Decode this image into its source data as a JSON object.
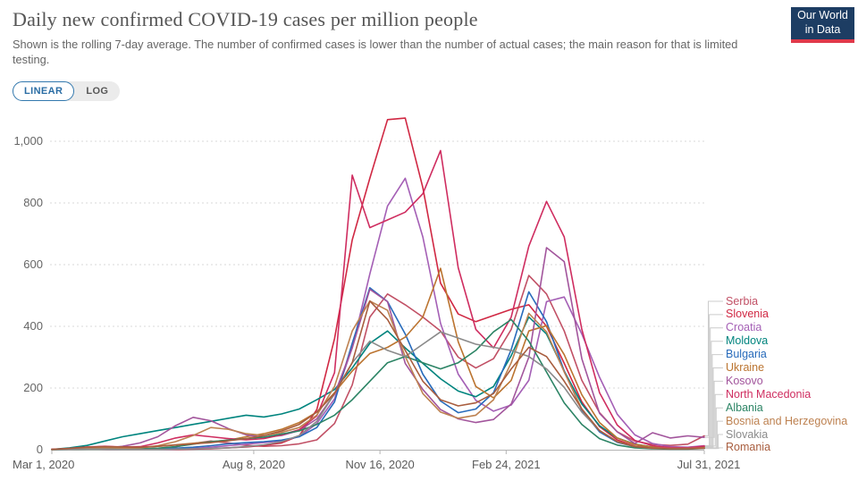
{
  "header": {
    "title": "Daily new confirmed COVID-19 cases per million people",
    "subtitle": "Shown is the rolling 7-day average. The number of confirmed cases is lower than the number of actual cases; the main reason for that is limited testing.",
    "logo": {
      "line1": "Our World",
      "line2": "in Data"
    }
  },
  "controls": {
    "linear_label": "LINEAR",
    "log_label": "LOG",
    "active": "LINEAR"
  },
  "colors": {
    "accent_blue": "#2a6da4",
    "toggle_border": "#3379ae",
    "logo_bg": "#1d3d63",
    "logo_red": "#e0394a",
    "grid": "#d9d9d9",
    "axis_line": "#b3b3b3",
    "connector": "#cccccc",
    "title_text": "#555555",
    "axis_text": "#666666"
  },
  "chart_data": {
    "type": "line",
    "title": "Daily new confirmed COVID-19 cases per million people",
    "xlabel": "",
    "ylabel": "",
    "grid": true,
    "legend_position": "right",
    "ylim": [
      0,
      1100
    ],
    "y_tick_values": [
      0,
      200,
      400,
      600,
      800,
      1000
    ],
    "y_tick_labels": [
      "0",
      "200",
      "400",
      "600",
      "800",
      "1,000"
    ],
    "x_range_days": 517,
    "sample_interval_days": 14,
    "x_ticks": [
      {
        "day": 0,
        "label": "Mar 1, 2020"
      },
      {
        "day": 160,
        "label": "Aug 8, 2020"
      },
      {
        "day": 260,
        "label": "Nov 16, 2020"
      },
      {
        "day": 360,
        "label": "Feb 24, 2021"
      },
      {
        "day": 517,
        "label": "Jul 31, 2021"
      }
    ],
    "series": [
      {
        "name": "Serbia",
        "color": "#C15065",
        "values": [
          1,
          3,
          5,
          4,
          3,
          3,
          4,
          9,
          20,
          28,
          22,
          14,
          11,
          13,
          19,
          32,
          85,
          210,
          430,
          505,
          470,
          430,
          385,
          300,
          265,
          295,
          390,
          565,
          505,
          385,
          225,
          120,
          58,
          28,
          17,
          14,
          18,
          45
        ]
      },
      {
        "name": "Slovenia",
        "color": "#D02843",
        "values": [
          2,
          3,
          3,
          2,
          1,
          1,
          1,
          1,
          2,
          3,
          6,
          9,
          14,
          22,
          45,
          130,
          360,
          680,
          880,
          1070,
          1075,
          850,
          540,
          440,
          415,
          435,
          455,
          470,
          400,
          280,
          155,
          75,
          32,
          12,
          6,
          4,
          5,
          10
        ]
      },
      {
        "name": "Croatia",
        "color": "#A45FB5",
        "values": [
          1,
          2,
          3,
          2,
          1,
          1,
          1,
          2,
          4,
          8,
          13,
          18,
          23,
          29,
          42,
          85,
          165,
          330,
          570,
          790,
          880,
          690,
          410,
          245,
          160,
          125,
          145,
          225,
          480,
          495,
          375,
          235,
          115,
          48,
          20,
          10,
          8,
          13
        ]
      },
      {
        "name": "Moldova",
        "color": "#00847E",
        "values": [
          1,
          6,
          14,
          28,
          42,
          52,
          62,
          72,
          82,
          92,
          102,
          112,
          106,
          116,
          132,
          162,
          195,
          265,
          345,
          385,
          330,
          280,
          230,
          190,
          172,
          205,
          305,
          430,
          375,
          255,
          148,
          78,
          38,
          18,
          9,
          6,
          5,
          8
        ]
      },
      {
        "name": "Bulgaria",
        "color": "#286BBB",
        "values": [
          1,
          2,
          3,
          3,
          2,
          2,
          3,
          5,
          8,
          13,
          19,
          23,
          26,
          31,
          42,
          72,
          155,
          345,
          525,
          480,
          375,
          245,
          158,
          120,
          132,
          185,
          325,
          512,
          415,
          255,
          128,
          58,
          24,
          10,
          5,
          3,
          3,
          5
        ]
      },
      {
        "name": "Ukraine",
        "color": "#BB7430",
        "values": [
          1,
          3,
          5,
          6,
          6,
          7,
          11,
          16,
          21,
          26,
          31,
          42,
          52,
          66,
          88,
          122,
          185,
          255,
          312,
          332,
          365,
          430,
          588,
          350,
          205,
          168,
          225,
          385,
          402,
          308,
          178,
          88,
          38,
          17,
          9,
          6,
          6,
          9
        ]
      },
      {
        "name": "Kosovo",
        "color": "#A2559C",
        "values": [
          1,
          2,
          3,
          5,
          11,
          22,
          42,
          78,
          105,
          94,
          68,
          48,
          40,
          46,
          62,
          100,
          180,
          330,
          520,
          480,
          280,
          195,
          130,
          100,
          88,
          98,
          148,
          300,
          655,
          610,
          295,
          118,
          58,
          20,
          55,
          38,
          45,
          40
        ]
      },
      {
        "name": "North Macedonia",
        "color": "#CF2D60",
        "values": [
          1,
          4,
          9,
          11,
          9,
          10,
          22,
          38,
          48,
          42,
          36,
          32,
          36,
          48,
          65,
          110,
          250,
          890,
          720,
          745,
          770,
          830,
          970,
          590,
          390,
          330,
          430,
          660,
          805,
          690,
          390,
          185,
          80,
          30,
          13,
          7,
          6,
          12
        ]
      },
      {
        "name": "Albania",
        "color": "#2C8465",
        "values": [
          0,
          1,
          2,
          2,
          2,
          3,
          5,
          10,
          18,
          26,
          31,
          36,
          41,
          51,
          61,
          82,
          112,
          162,
          222,
          282,
          302,
          282,
          262,
          282,
          322,
          382,
          422,
          352,
          252,
          152,
          82,
          36,
          15,
          6,
          3,
          2,
          2,
          4
        ]
      },
      {
        "name": "Bosnia and Herzegovina",
        "color": "#BD8150",
        "values": [
          1,
          3,
          5,
          6,
          5,
          6,
          13,
          26,
          46,
          72,
          66,
          52,
          46,
          56,
          72,
          112,
          205,
          385,
          482,
          452,
          302,
          182,
          122,
          102,
          112,
          162,
          282,
          442,
          382,
          252,
          132,
          62,
          26,
          11,
          5,
          4,
          4,
          6
        ]
      },
      {
        "name": "Slovakia",
        "color": "#8A8A8A",
        "values": [
          0,
          1,
          2,
          2,
          1,
          1,
          1,
          2,
          3,
          4,
          6,
          10,
          16,
          26,
          46,
          92,
          182,
          282,
          352,
          322,
          302,
          342,
          382,
          362,
          342,
          332,
          322,
          302,
          262,
          202,
          122,
          62,
          26,
          10,
          5,
          3,
          3,
          4
        ]
      },
      {
        "name": "Romania",
        "color": "#A85D3E",
        "values": [
          1,
          4,
          8,
          10,
          9,
          8,
          11,
          15,
          19,
          23,
          29,
          36,
          46,
          61,
          82,
          122,
          182,
          282,
          482,
          422,
          322,
          222,
          162,
          142,
          152,
          182,
          262,
          332,
          302,
          222,
          132,
          62,
          26,
          10,
          5,
          3,
          3,
          5
        ]
      }
    ]
  }
}
